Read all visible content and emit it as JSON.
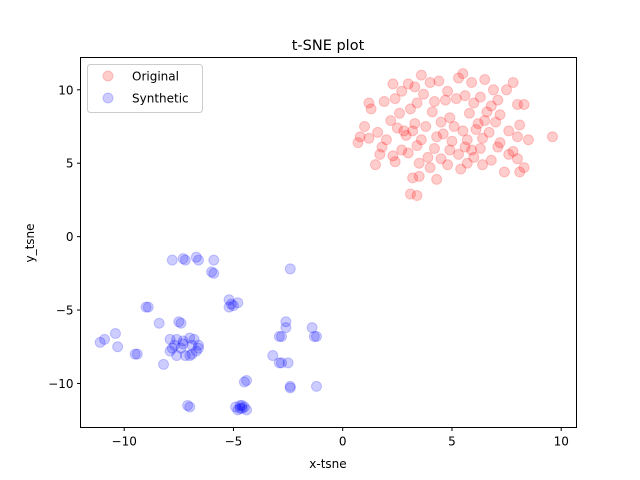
{
  "chart_data": {
    "type": "scatter",
    "title": "t-SNE plot",
    "xlabel": "x-tsne",
    "ylabel": "y_tsne",
    "xlim": [
      -12,
      10.7
    ],
    "ylim": [
      -13,
      12.2
    ],
    "xticks": [
      -10,
      -5,
      0,
      5,
      10
    ],
    "yticks": [
      -10,
      -5,
      0,
      5,
      10
    ],
    "xtick_labels": [
      "−10",
      "−5",
      "0",
      "5",
      "10"
    ],
    "ytick_labels": [
      "−10",
      "−5",
      "0",
      "5",
      "10"
    ],
    "grid": false,
    "legend_position": "top-left",
    "series": [
      {
        "name": "Original",
        "color": "#ff0000",
        "points": [
          [
            3.6,
            11.0
          ],
          [
            5.5,
            11.1
          ],
          [
            6.5,
            10.7
          ],
          [
            7.8,
            10.5
          ],
          [
            2.3,
            10.4
          ],
          [
            3.3,
            10.2
          ],
          [
            4.4,
            10.6
          ],
          [
            5.9,
            10.5
          ],
          [
            6.9,
            10.0
          ],
          [
            3.0,
            10.4
          ],
          [
            4.0,
            10.5
          ],
          [
            5.3,
            10.8
          ],
          [
            7.5,
            10.0
          ],
          [
            2.7,
            9.9
          ],
          [
            3.7,
            9.7
          ],
          [
            4.8,
            9.9
          ],
          [
            5.6,
            9.6
          ],
          [
            6.3,
            9.5
          ],
          [
            7.1,
            9.3
          ],
          [
            1.2,
            9.1
          ],
          [
            1.9,
            9.2
          ],
          [
            2.4,
            9.4
          ],
          [
            3.4,
            9.1
          ],
          [
            4.2,
            9.2
          ],
          [
            5.2,
            9.4
          ],
          [
            6.0,
            9.1
          ],
          [
            6.8,
            8.9
          ],
          [
            8.0,
            9.0
          ],
          [
            8.3,
            9.0
          ],
          [
            1.3,
            8.7
          ],
          [
            2.6,
            8.4
          ],
          [
            3.1,
            8.7
          ],
          [
            4.1,
            8.5
          ],
          [
            4.9,
            8.1
          ],
          [
            5.8,
            8.4
          ],
          [
            6.6,
            8.5
          ],
          [
            7.2,
            8.3
          ],
          [
            2.2,
            7.9
          ],
          [
            3.3,
            7.7
          ],
          [
            4.5,
            7.8
          ],
          [
            5.1,
            7.5
          ],
          [
            6.2,
            7.7
          ],
          [
            7.0,
            7.8
          ],
          [
            8.1,
            7.6
          ],
          [
            1.0,
            7.5
          ],
          [
            1.6,
            7.1
          ],
          [
            2.5,
            7.4
          ],
          [
            3.2,
            7.2
          ],
          [
            3.8,
            7.5
          ],
          [
            4.6,
            7.0
          ],
          [
            5.5,
            7.2
          ],
          [
            6.1,
            7.3
          ],
          [
            6.7,
            7.1
          ],
          [
            7.6,
            7.2
          ],
          [
            0.8,
            6.8
          ],
          [
            1.2,
            6.7
          ],
          [
            2.0,
            6.6
          ],
          [
            2.9,
            6.9
          ],
          [
            3.6,
            6.6
          ],
          [
            4.3,
            6.8
          ],
          [
            5.0,
            6.5
          ],
          [
            5.7,
            6.6
          ],
          [
            6.4,
            6.7
          ],
          [
            7.2,
            6.4
          ],
          [
            8.0,
            6.8
          ],
          [
            8.5,
            6.6
          ],
          [
            9.6,
            6.8
          ],
          [
            0.7,
            6.4
          ],
          [
            1.8,
            6.1
          ],
          [
            2.7,
            5.9
          ],
          [
            3.4,
            6.2
          ],
          [
            4.2,
            6.0
          ],
          [
            4.9,
            5.9
          ],
          [
            5.6,
            6.1
          ],
          [
            6.3,
            6.0
          ],
          [
            7.1,
            6.1
          ],
          [
            7.8,
            5.8
          ],
          [
            1.7,
            5.6
          ],
          [
            2.3,
            5.5
          ],
          [
            3.0,
            5.7
          ],
          [
            3.9,
            5.4
          ],
          [
            4.5,
            5.3
          ],
          [
            5.3,
            5.6
          ],
          [
            6.0,
            5.4
          ],
          [
            6.8,
            5.2
          ],
          [
            7.6,
            5.6
          ],
          [
            8.0,
            5.3
          ],
          [
            1.5,
            4.9
          ],
          [
            2.4,
            5.1
          ],
          [
            3.5,
            5.0
          ],
          [
            4.8,
            4.9
          ],
          [
            5.7,
            5.0
          ],
          [
            6.4,
            4.9
          ],
          [
            7.4,
            4.4
          ],
          [
            8.3,
            4.7
          ],
          [
            3.2,
            4.0
          ],
          [
            4.3,
            3.9
          ],
          [
            3.5,
            4.1
          ],
          [
            3.1,
            2.9
          ],
          [
            3.4,
            2.8
          ],
          [
            8.1,
            4.4
          ],
          [
            4.0,
            4.7
          ],
          [
            5.9,
            5.9
          ],
          [
            6.5,
            7.9
          ],
          [
            4.7,
            9.3
          ],
          [
            2.8,
            7.2
          ],
          [
            5.4,
            4.6
          ]
        ]
      },
      {
        "name": "Synthetic",
        "color": "#0000ff",
        "points": [
          [
            -7.8,
            -1.6
          ],
          [
            -7.3,
            -1.5
          ],
          [
            -7.2,
            -1.6
          ],
          [
            -6.7,
            -1.4
          ],
          [
            -6.6,
            -1.6
          ],
          [
            -5.9,
            -1.6
          ],
          [
            -6.0,
            -2.4
          ],
          [
            -5.9,
            -2.5
          ],
          [
            -2.4,
            -2.2
          ],
          [
            -5.2,
            -4.3
          ],
          [
            -4.8,
            -4.5
          ],
          [
            -5.1,
            -4.6
          ],
          [
            -5.0,
            -4.7
          ],
          [
            -5.2,
            -4.8
          ],
          [
            -9.0,
            -4.8
          ],
          [
            -8.9,
            -4.8
          ],
          [
            -8.4,
            -5.9
          ],
          [
            -7.5,
            -5.8
          ],
          [
            -7.4,
            -5.9
          ],
          [
            -2.6,
            -5.8
          ],
          [
            -2.6,
            -6.2
          ],
          [
            -1.4,
            -6.2
          ],
          [
            -1.3,
            -6.8
          ],
          [
            -1.2,
            -6.8
          ],
          [
            -2.9,
            -6.8
          ],
          [
            -2.8,
            -6.8
          ],
          [
            -10.4,
            -6.6
          ],
          [
            -10.9,
            -7.0
          ],
          [
            -11.1,
            -7.2
          ],
          [
            -10.3,
            -7.5
          ],
          [
            -9.5,
            -8.0
          ],
          [
            -9.4,
            -8.0
          ],
          [
            -8.2,
            -8.7
          ],
          [
            -7.9,
            -7.0
          ],
          [
            -7.6,
            -7.0
          ],
          [
            -7.3,
            -7.1
          ],
          [
            -7.0,
            -6.9
          ],
          [
            -6.8,
            -7.0
          ],
          [
            -7.7,
            -7.4
          ],
          [
            -7.4,
            -7.6
          ],
          [
            -6.9,
            -7.4
          ],
          [
            -6.6,
            -7.4
          ],
          [
            -7.9,
            -7.8
          ],
          [
            -7.6,
            -8.1
          ],
          [
            -7.2,
            -8.1
          ],
          [
            -6.9,
            -8.0
          ],
          [
            -6.7,
            -7.8
          ],
          [
            -6.6,
            -7.6
          ],
          [
            -7.3,
            -7.3
          ],
          [
            -7.8,
            -7.6
          ],
          [
            -7.0,
            -8.1
          ],
          [
            -3.2,
            -8.1
          ],
          [
            -2.9,
            -8.6
          ],
          [
            -2.8,
            -8.6
          ],
          [
            -2.5,
            -8.6
          ],
          [
            -4.5,
            -9.9
          ],
          [
            -4.4,
            -9.8
          ],
          [
            -2.4,
            -10.3
          ],
          [
            -2.4,
            -10.2
          ],
          [
            -1.2,
            -10.2
          ],
          [
            -7.1,
            -11.5
          ],
          [
            -7.0,
            -11.6
          ],
          [
            -4.9,
            -11.6
          ],
          [
            -4.7,
            -11.5
          ],
          [
            -4.6,
            -11.7
          ],
          [
            -4.5,
            -11.6
          ],
          [
            -4.8,
            -11.8
          ],
          [
            -4.4,
            -11.8
          ],
          [
            -4.6,
            -11.5
          ],
          [
            -4.7,
            -11.7
          ]
        ]
      }
    ]
  }
}
